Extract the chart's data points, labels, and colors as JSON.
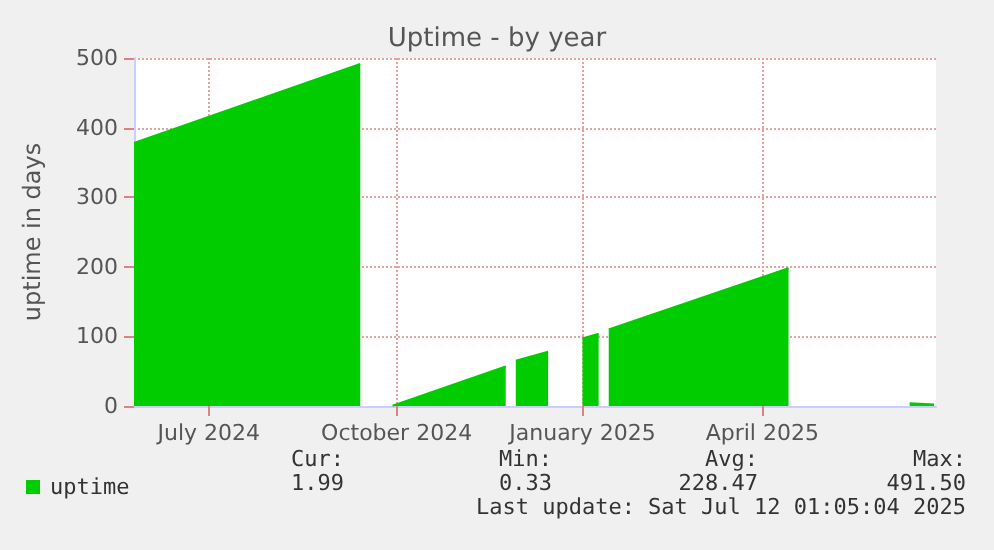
{
  "chart_data": {
    "type": "area",
    "title": "Uptime - by year",
    "ylabel": "uptime in days",
    "x": [
      "2024-06-10",
      "2024-09-30",
      null,
      "2024-10-16",
      "2024-12-11",
      null,
      "2024-12-16",
      "2025-01-01",
      null,
      "2025-01-18",
      "2025-01-26",
      null,
      "2025-01-31",
      "2025-04-30",
      null,
      "2025-06-29",
      "2025-07-11"
    ],
    "series": [
      {
        "name": "uptime",
        "color": "#00cc00",
        "values": [
          378,
          491.5,
          null,
          0.33,
          57,
          null,
          65,
          78,
          null,
          97,
          104,
          null,
          110,
          198,
          null,
          4,
          1.99
        ]
      }
    ],
    "xlim": [
      "2024-06-10",
      "2025-07-12"
    ],
    "xticks": [
      {
        "value": "2024-07-17",
        "label": "July 2024"
      },
      {
        "value": "2024-10-18",
        "label": "October 2024"
      },
      {
        "value": "2025-01-18",
        "label": "January 2025"
      },
      {
        "value": "2025-04-17",
        "label": "April 2025"
      }
    ],
    "ylim": [
      0,
      500
    ],
    "yticks": [
      0,
      100,
      200,
      300,
      400,
      500
    ],
    "grid": true,
    "legend": "bottom left",
    "annotations": [
      "Cur:",
      "Min:",
      "Avg:",
      "Max:",
      "1.99",
      "0.33",
      "228.47",
      "491.50",
      "Last update: Sat Jul 12 01:05:04 2025"
    ]
  }
}
